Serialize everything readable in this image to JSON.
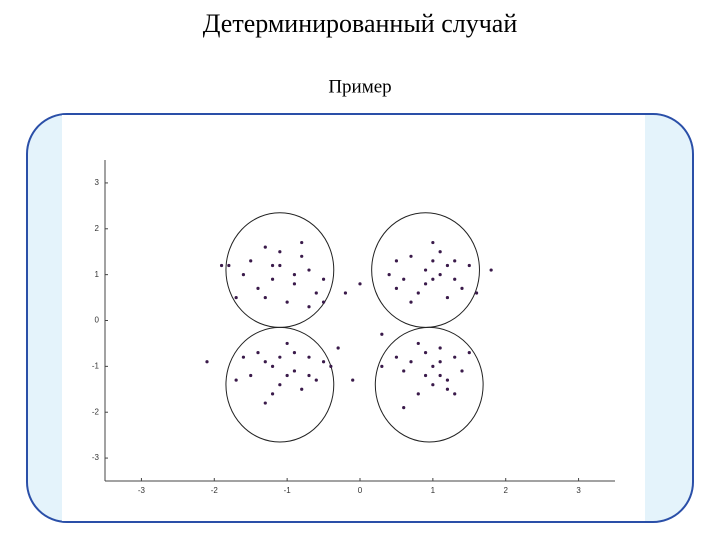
{
  "chart_data": {
    "type": "scatter",
    "title": "Детерминированный случай",
    "subtitle": "Пример",
    "xlim": [
      -3.5,
      3.5
    ],
    "ylim": [
      -3.5,
      3.5
    ],
    "xticks": [
      -3,
      -2,
      -1,
      0,
      1,
      2,
      3
    ],
    "yticks": [
      -3,
      -2,
      -1,
      0,
      1,
      2,
      3
    ],
    "series": [
      {
        "color": "#3a1a4a",
        "x": [
          -1.3,
          -0.8,
          -1.5,
          -1.1,
          -0.7,
          -1.2,
          -0.9,
          -1.6,
          -0.6,
          -1.3,
          -1.0,
          -0.8,
          -1.4,
          -0.5,
          -1.1,
          -1.7,
          -0.9,
          -1.2,
          -0.7,
          -1.8,
          0.7,
          1.0,
          1.3,
          0.9,
          1.1,
          0.6,
          1.4,
          0.8,
          1.2,
          1.0,
          0.5,
          1.5,
          0.9,
          1.1,
          1.3,
          0.7,
          1.6,
          1.0,
          0.4,
          1.2,
          -1.4,
          -1.0,
          -0.7,
          -1.2,
          -0.9,
          -1.5,
          -0.6,
          -1.1,
          -1.3,
          -0.8,
          -1.6,
          -1.0,
          -0.5,
          -1.2,
          -0.9,
          -1.7,
          -1.1,
          -0.7,
          -1.3,
          -0.4,
          0.8,
          1.1,
          0.7,
          1.0,
          1.3,
          0.9,
          1.2,
          0.6,
          1.4,
          1.0,
          0.8,
          1.5,
          1.1,
          0.5,
          1.2,
          0.9,
          1.3,
          0.6,
          1.1,
          0.3,
          -2.1,
          -1.9,
          0.0,
          -0.2,
          0.5,
          -0.3,
          0.3,
          -0.1,
          1.8,
          -0.5
        ],
        "y": [
          1.6,
          1.7,
          1.3,
          1.2,
          1.1,
          0.9,
          0.8,
          1.0,
          0.6,
          0.5,
          0.4,
          1.4,
          0.7,
          0.9,
          1.5,
          0.5,
          1.0,
          1.2,
          0.3,
          1.2,
          1.4,
          1.7,
          1.3,
          1.1,
          1.0,
          0.9,
          0.7,
          0.6,
          0.5,
          1.3,
          1.3,
          1.2,
          0.8,
          1.5,
          0.9,
          0.4,
          0.6,
          0.9,
          1.0,
          1.2,
          -0.7,
          -0.5,
          -0.8,
          -1.0,
          -1.1,
          -1.2,
          -1.3,
          -1.4,
          -0.9,
          -1.5,
          -0.8,
          -1.2,
          -0.9,
          -1.6,
          -0.7,
          -1.3,
          -0.8,
          -1.2,
          -1.8,
          -1.0,
          -0.5,
          -0.6,
          -0.9,
          -1.0,
          -0.8,
          -1.2,
          -1.3,
          -1.1,
          -1.1,
          -1.4,
          -1.6,
          -0.7,
          -1.2,
          -0.8,
          -1.5,
          -0.7,
          -1.6,
          -1.9,
          -0.9,
          -1.0,
          -0.9,
          1.2,
          0.8,
          0.6,
          0.7,
          -0.6,
          -0.3,
          -1.3,
          1.1,
          0.4
        ]
      }
    ],
    "circles": [
      {
        "cx": -1.1,
        "cy": 1.1,
        "rx": 0.74,
        "ry": 1.25
      },
      {
        "cx": 0.9,
        "cy": 1.1,
        "rx": 0.74,
        "ry": 1.25
      },
      {
        "cx": -1.1,
        "cy": -1.4,
        "rx": 0.74,
        "ry": 1.25
      },
      {
        "cx": 0.95,
        "cy": -1.4,
        "rx": 0.74,
        "ry": 1.25
      }
    ]
  }
}
